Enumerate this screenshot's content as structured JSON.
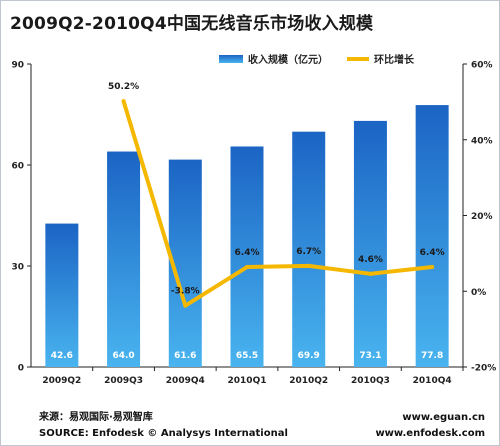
{
  "title": "2009Q2-2010Q4中国无线音乐市场收入规模",
  "chart_data": {
    "type": "bar",
    "title": "2009Q2-2010Q4中国无线音乐市场收入规模",
    "categories": [
      "2009Q2",
      "2009Q3",
      "2009Q4",
      "2010Q1",
      "2010Q2",
      "2010Q3",
      "2010Q4"
    ],
    "series": [
      {
        "name": "收入规模（亿元）",
        "type": "bar",
        "axis": "left",
        "values": [
          42.6,
          64.0,
          61.6,
          65.5,
          69.9,
          73.1,
          77.8
        ],
        "labels": [
          "42.6",
          "64.0",
          "61.6",
          "65.5",
          "69.9",
          "73.1",
          "77.8"
        ],
        "color": "#2a82d6"
      },
      {
        "name": "环比增长",
        "type": "line",
        "axis": "right",
        "values": [
          null,
          50.2,
          -3.8,
          6.4,
          6.7,
          4.6,
          6.4
        ],
        "labels": [
          "",
          "50.2%",
          "-3.8%",
          "6.4%",
          "6.7%",
          "4.6%",
          "6.4%"
        ],
        "color": "#f5b800"
      }
    ],
    "left_axis": {
      "min": 0,
      "max": 90,
      "ticks": [
        "0",
        "30",
        "60",
        "90"
      ],
      "tick_values": [
        0,
        30,
        60,
        90
      ]
    },
    "right_axis": {
      "min": -20,
      "max": 60,
      "ticks": [
        "-20%",
        "0%",
        "20%",
        "40%",
        "60%"
      ],
      "tick_values": [
        -20,
        0,
        20,
        40,
        60
      ]
    },
    "grid": false,
    "legend_position": "top-right"
  },
  "source": {
    "cn": "来源：易观国际·易观智库",
    "en": "SOURCE: Enfodesk © Analysys International"
  },
  "urls": [
    "www.eguan.cn",
    "www.enfodesk.com"
  ],
  "colors": {
    "bar_top": "#1b64c4",
    "bar_bottom": "#49b4ef",
    "line": "#f5b800",
    "axis": "#222222"
  }
}
